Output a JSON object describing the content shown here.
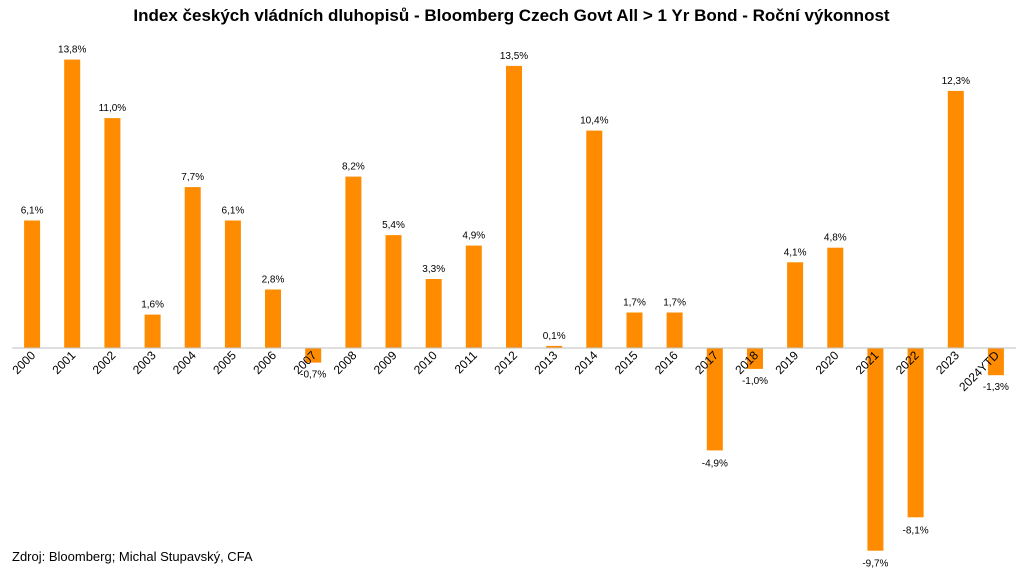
{
  "chart_data": {
    "type": "bar",
    "title": "Index českých vládních dluhopisů - Bloomberg Czech Govt All > 1 Yr Bond - Roční výkonnost",
    "source": "Zdroj: Bloomberg; Michal Stupavský, CFA",
    "categories": [
      "2000",
      "2001",
      "2002",
      "2003",
      "2004",
      "2005",
      "2006",
      "2007",
      "2008",
      "2009",
      "2010",
      "2011",
      "2012",
      "2013",
      "2014",
      "2015",
      "2016",
      "2017",
      "2018",
      "2019",
      "2020",
      "2021",
      "2022",
      "2023",
      "2024YTD"
    ],
    "values": [
      6.1,
      13.8,
      11.0,
      1.6,
      7.7,
      6.1,
      2.8,
      -0.7,
      8.2,
      5.4,
      3.3,
      4.9,
      13.5,
      0.1,
      10.4,
      1.7,
      1.7,
      -4.9,
      -1.0,
      4.1,
      4.8,
      -9.7,
      -8.1,
      12.3,
      -1.3
    ],
    "value_labels": [
      "6,1%",
      "13,8%",
      "11,0%",
      "1,6%",
      "7,7%",
      "6,1%",
      "2,8%",
      "-0,7%",
      "8,2%",
      "5,4%",
      "3,3%",
      "4,9%",
      "13,5%",
      "0,1%",
      "10,4%",
      "1,7%",
      "1,7%",
      "-4,9%",
      "-1,0%",
      "4,1%",
      "4,8%",
      "-9,7%",
      "-8,1%",
      "12,3%",
      "-1,3%"
    ],
    "bar_color": "#FF8C00",
    "axis_color": "#BFBFBF",
    "grid": false,
    "legend": "none",
    "ylim": [
      -10,
      14
    ]
  }
}
